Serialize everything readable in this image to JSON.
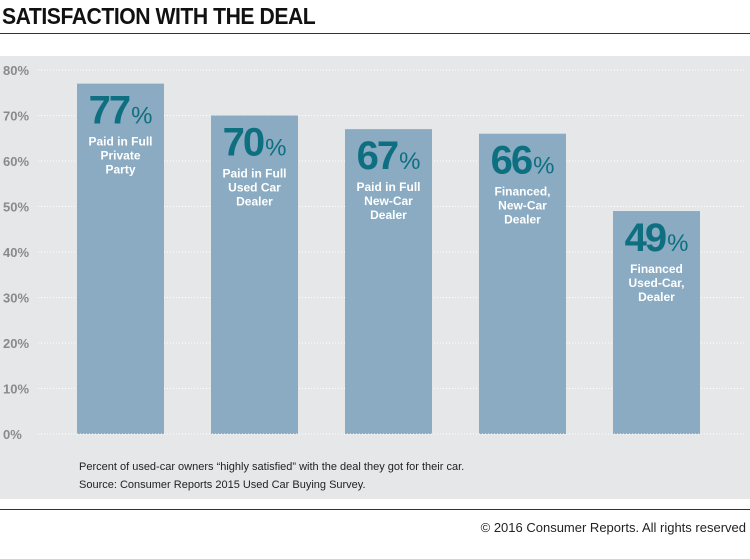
{
  "header": {
    "title": "SATISFACTION WITH THE DEAL"
  },
  "chart_data": {
    "type": "bar",
    "title": "SATISFACTION WITH THE DEAL",
    "xlabel": "",
    "ylabel": "",
    "ylim": [
      0,
      80
    ],
    "yticks": [
      "0%",
      "10%",
      "20%",
      "30%",
      "40%",
      "50%",
      "60%",
      "70%",
      "80%"
    ],
    "grid": true,
    "categories": [
      [
        "Paid in Full",
        "Private",
        "Party"
      ],
      [
        "Paid in Full",
        "Used Car",
        "Dealer"
      ],
      [
        "Paid in Full",
        "New-Car",
        "Dealer"
      ],
      [
        "Financed,",
        "New-Car",
        "Dealer"
      ],
      [
        "Financed",
        "Used-Car,",
        "Dealer"
      ]
    ],
    "values": [
      77,
      70,
      67,
      66,
      49
    ],
    "value_labels": [
      "77",
      "70",
      "67",
      "66",
      "49"
    ],
    "value_suffix": "%",
    "bar_color": "#8aabc2",
    "label_color": "#0e6f80"
  },
  "notes": {
    "line1": "Percent of used-car owners “highly satisfied” with the deal they got for their car.",
    "line2": "Source: Consumer Reports 2015 Used Car Buying Survey."
  },
  "footer": {
    "copyright": "© 2016 Consumer Reports. All rights reserved"
  }
}
